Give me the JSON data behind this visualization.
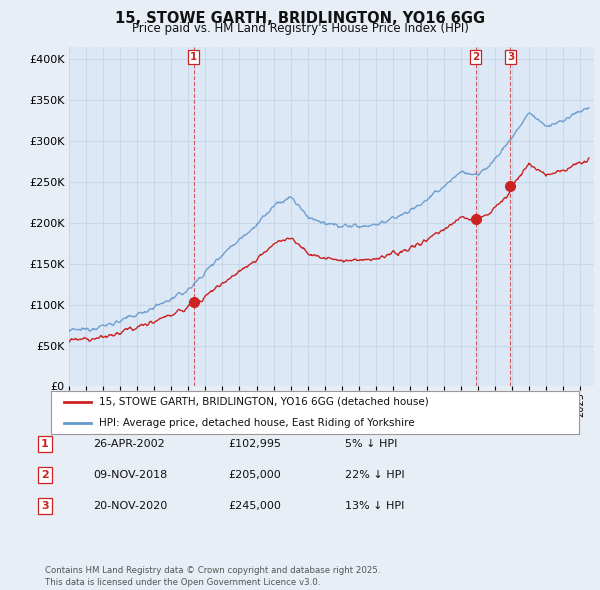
{
  "title": "15, STOWE GARTH, BRIDLINGTON, YO16 6GG",
  "subtitle": "Price paid vs. HM Land Registry's House Price Index (HPI)",
  "ytick_values": [
    0,
    50000,
    100000,
    150000,
    200000,
    250000,
    300000,
    350000,
    400000
  ],
  "ylim": [
    0,
    415000
  ],
  "xlim_start": 1995.0,
  "xlim_end": 2025.8,
  "background_color": "#e8eef5",
  "plot_bg_color": "#dce8f5",
  "grid_color": "#c8d8e8",
  "hpi_color": "#6699cc",
  "price_color": "#cc2222",
  "vline_color": "#cc2222",
  "sale1_date": 2002.32,
  "sale1_price": 102995,
  "sale1_label": "1",
  "sale2_date": 2018.86,
  "sale2_price": 205000,
  "sale2_label": "2",
  "sale3_date": 2020.9,
  "sale3_price": 245000,
  "sale3_label": "3",
  "legend_line1": "15, STOWE GARTH, BRIDLINGTON, YO16 6GG (detached house)",
  "legend_line2": "HPI: Average price, detached house, East Riding of Yorkshire",
  "table_entries": [
    {
      "num": "1",
      "date": "26-APR-2002",
      "price": "£102,995",
      "pct": "5% ↓ HPI"
    },
    {
      "num": "2",
      "date": "09-NOV-2018",
      "price": "£205,000",
      "pct": "22% ↓ HPI"
    },
    {
      "num": "3",
      "date": "20-NOV-2020",
      "price": "£245,000",
      "pct": "13% ↓ HPI"
    }
  ],
  "footer": "Contains HM Land Registry data © Crown copyright and database right 2025.\nThis data is licensed under the Open Government Licence v3.0."
}
